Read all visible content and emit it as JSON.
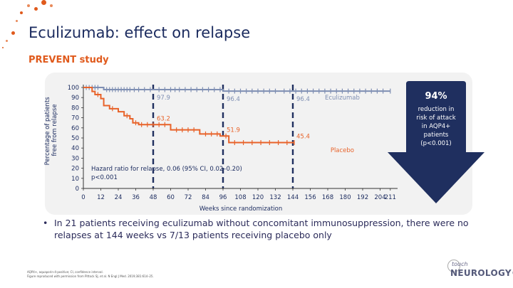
{
  "slide": {
    "title": "Eculizumab: effect on relapse",
    "subtitle": "PREVENT study",
    "bullet": "In 21 patients receiving eculizumab without concomitant immunosuppression, there were no relapses at 144 weeks vs 7/13 patients receiving placebo only",
    "footnote_line1": "AQP4+, aquaporin-4-positive; CI, confidence interval.",
    "footnote_line2": "Figure reproduced with permission from Pittock SJ, et al. N Engl J Med. 2019;381:614–25.",
    "logo_touch": "touch",
    "logo_name": "NEUROLOGY®"
  },
  "callout": {
    "percent": "94%",
    "line1": "reduction in",
    "line2": "risk of attack",
    "line3": "in AQP4+",
    "line4": "patients",
    "line5": "(p<0.001)"
  },
  "colors": {
    "title": "#1a2a5e",
    "accent": "#e05a1c",
    "eculizumab": "#7f8fb3",
    "placebo": "#e8632a",
    "arrow": "#1f2f5f",
    "dashed": "#1f2f5f"
  },
  "chart_data": {
    "type": "line",
    "title": "",
    "xlabel": "Weeks since randomization",
    "ylabel": "Percentage of patients free from relapse",
    "xlim": [
      0,
      216
    ],
    "ylim": [
      0,
      100
    ],
    "x_ticks": [
      0,
      12,
      24,
      36,
      48,
      60,
      72,
      84,
      96,
      108,
      120,
      132,
      144,
      156,
      168,
      180,
      192,
      204,
      211
    ],
    "y_ticks": [
      0,
      10,
      20,
      30,
      40,
      50,
      60,
      70,
      80,
      90,
      100
    ],
    "dashed_verticals": [
      48,
      96,
      144
    ],
    "series": [
      {
        "name": "Eculizumab",
        "step": [
          [
            0,
            100
          ],
          [
            14,
            100
          ],
          [
            14,
            97.9
          ],
          [
            96,
            97.9
          ],
          [
            96,
            96.4
          ],
          [
            211,
            96.4
          ]
        ],
        "censor_x": [
          2,
          4,
          6,
          8,
          10,
          16,
          18,
          20,
          22,
          24,
          26,
          28,
          30,
          32,
          35,
          38,
          42,
          46,
          52,
          56,
          60,
          63,
          66,
          70,
          74,
          78,
          82,
          86,
          90,
          94,
          100,
          104,
          108,
          112,
          116,
          120,
          124,
          128,
          132,
          138,
          142,
          146,
          150,
          154,
          158,
          162,
          166,
          170,
          174,
          178,
          182,
          186,
          190,
          194,
          198,
          202,
          206,
          211
        ],
        "labels": [
          {
            "x": 48,
            "y": 97.9,
            "text": "97.9"
          },
          {
            "x": 96,
            "y": 96.4,
            "text": "96.4"
          },
          {
            "x": 144,
            "y": 96.4,
            "text": "96.4"
          }
        ]
      },
      {
        "name": "Placebo",
        "step": [
          [
            0,
            100
          ],
          [
            6,
            100
          ],
          [
            6,
            96
          ],
          [
            8,
            96
          ],
          [
            8,
            93
          ],
          [
            12,
            93
          ],
          [
            12,
            89
          ],
          [
            14,
            89
          ],
          [
            14,
            82
          ],
          [
            18,
            82
          ],
          [
            18,
            79
          ],
          [
            24,
            79
          ],
          [
            24,
            76
          ],
          [
            28,
            76
          ],
          [
            28,
            72
          ],
          [
            32,
            72
          ],
          [
            32,
            69
          ],
          [
            34,
            69
          ],
          [
            34,
            65
          ],
          [
            38,
            65
          ],
          [
            38,
            63.2
          ],
          [
            60,
            63.2
          ],
          [
            60,
            58
          ],
          [
            80,
            58
          ],
          [
            80,
            54
          ],
          [
            94,
            54
          ],
          [
            94,
            51.9
          ],
          [
            100,
            51.9
          ],
          [
            100,
            45.4
          ],
          [
            145,
            45.4
          ]
        ],
        "censor_x": [
          10,
          20,
          30,
          36,
          40,
          44,
          48,
          52,
          56,
          64,
          68,
          72,
          76,
          84,
          88,
          92,
          98,
          104,
          110,
          116,
          122,
          128,
          134,
          140,
          145
        ],
        "labels": [
          {
            "x": 48,
            "y": 63.2,
            "text": "63.2"
          },
          {
            "x": 96,
            "y": 51.9,
            "text": "51.9"
          },
          {
            "x": 144,
            "y": 45.4,
            "text": "45.4"
          }
        ]
      }
    ],
    "series_labels": [
      {
        "name": "Eculizumab",
        "x": 178,
        "y": 88
      },
      {
        "name": "Placebo",
        "x": 178,
        "y": 36
      }
    ],
    "annotation_line1": "Hazard ratio for relapse, 0.06 (95% CI, 0.02–0.20)",
    "annotation_line2": "p<0.001"
  }
}
